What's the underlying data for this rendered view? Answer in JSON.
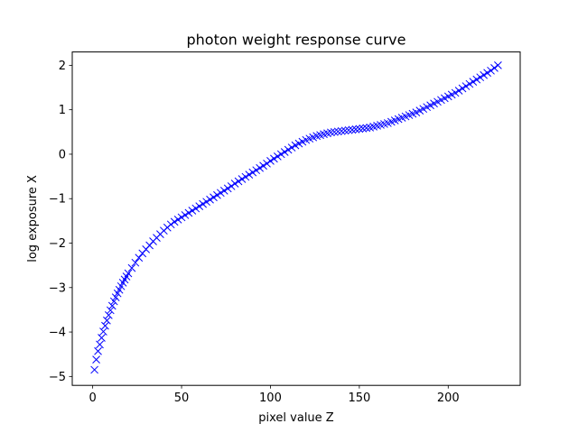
{
  "chart_data": {
    "type": "scatter",
    "title": "photon weight response curve",
    "xlabel": "pixel value Z",
    "ylabel": "log exposure X",
    "xlim": [
      -11.5,
      240.5
    ],
    "ylim": [
      -5.2,
      2.3
    ],
    "x_ticks": [
      {
        "value": 0,
        "label": "0"
      },
      {
        "value": 50,
        "label": "50"
      },
      {
        "value": 100,
        "label": "100"
      },
      {
        "value": 150,
        "label": "150"
      },
      {
        "value": 200,
        "label": "200"
      }
    ],
    "y_ticks": [
      {
        "value": -5,
        "label": "−5"
      },
      {
        "value": -4,
        "label": "−4"
      },
      {
        "value": -3,
        "label": "−3"
      },
      {
        "value": -2,
        "label": "−2"
      },
      {
        "value": -1,
        "label": "−1"
      },
      {
        "value": 0,
        "label": "0"
      },
      {
        "value": 1,
        "label": "1"
      },
      {
        "value": 2,
        "label": "2"
      }
    ],
    "grid": false,
    "legend": "none",
    "marker": "x",
    "color": "#0000ff",
    "series": [
      {
        "x": [
          1,
          2,
          3,
          4,
          5,
          6,
          7,
          8,
          9,
          10,
          11,
          12,
          13,
          14,
          15,
          16,
          17,
          18,
          19,
          20,
          22,
          24,
          26,
          28,
          30,
          32,
          34,
          36,
          38,
          40,
          42,
          44,
          46,
          48,
          50,
          52,
          54,
          56,
          58,
          60,
          62,
          64,
          66,
          68,
          70,
          72,
          74,
          76,
          78,
          80,
          82,
          84,
          86,
          88,
          90,
          92,
          94,
          96,
          98,
          100,
          102,
          104,
          106,
          108,
          110,
          112,
          114,
          116,
          118,
          120,
          122,
          124,
          126,
          128,
          130,
          132,
          134,
          136,
          138,
          140,
          142,
          144,
          146,
          148,
          150,
          152,
          154,
          156,
          158,
          160,
          162,
          164,
          166,
          168,
          170,
          172,
          174,
          176,
          178,
          180,
          182,
          184,
          186,
          188,
          190,
          192,
          194,
          196,
          198,
          200,
          202,
          204,
          206,
          208,
          210,
          212,
          214,
          216,
          218,
          220,
          222,
          224,
          226,
          228
        ],
        "y": [
          -4.85,
          -4.62,
          -4.43,
          -4.28,
          -4.13,
          -3.99,
          -3.86,
          -3.74,
          -3.62,
          -3.51,
          -3.41,
          -3.31,
          -3.22,
          -3.13,
          -3.05,
          -2.97,
          -2.89,
          -2.82,
          -2.75,
          -2.68,
          -2.56,
          -2.44,
          -2.33,
          -2.23,
          -2.14,
          -2.05,
          -1.96,
          -1.88,
          -1.8,
          -1.72,
          -1.65,
          -1.58,
          -1.52,
          -1.47,
          -1.42,
          -1.37,
          -1.32,
          -1.27,
          -1.22,
          -1.17,
          -1.12,
          -1.07,
          -1.02,
          -0.97,
          -0.92,
          -0.87,
          -0.82,
          -0.77,
          -0.72,
          -0.66,
          -0.61,
          -0.56,
          -0.51,
          -0.46,
          -0.41,
          -0.36,
          -0.31,
          -0.26,
          -0.21,
          -0.15,
          -0.1,
          -0.05,
          0.0,
          0.05,
          0.1,
          0.15,
          0.2,
          0.24,
          0.28,
          0.32,
          0.35,
          0.38,
          0.41,
          0.43,
          0.45,
          0.47,
          0.49,
          0.5,
          0.51,
          0.52,
          0.53,
          0.54,
          0.55,
          0.56,
          0.57,
          0.58,
          0.59,
          0.6,
          0.62,
          0.64,
          0.66,
          0.68,
          0.7,
          0.73,
          0.76,
          0.79,
          0.82,
          0.85,
          0.88,
          0.91,
          0.94,
          0.98,
          1.02,
          1.06,
          1.1,
          1.14,
          1.18,
          1.22,
          1.26,
          1.3,
          1.34,
          1.38,
          1.43,
          1.48,
          1.53,
          1.58,
          1.63,
          1.68,
          1.73,
          1.78,
          1.83,
          1.88,
          1.94,
          2.0
        ]
      }
    ]
  }
}
